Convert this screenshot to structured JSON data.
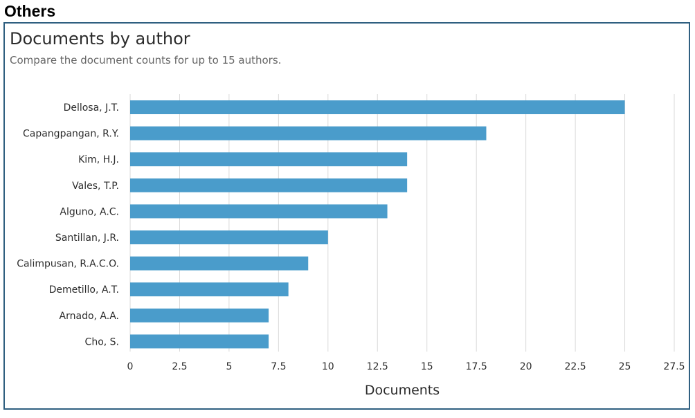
{
  "section": {
    "heading": "Others"
  },
  "panel": {
    "title": "Documents by author",
    "subtitle": "Compare the document counts for up to 15 authors."
  },
  "colors": {
    "bar": "#4a9ccb",
    "grid": "#d9d9d9",
    "border": "#2f5f80",
    "text": "#2b2b2b"
  },
  "chart_data": {
    "type": "bar",
    "orientation": "horizontal",
    "categories": [
      "Dellosa, J.T.",
      "Capangpangan, R.Y.",
      "Kim, H.J.",
      "Vales, T.P.",
      "Alguno, A.C.",
      "Santillan, J.R.",
      "Calimpusan, R.A.C.O.",
      "Demetillo, A.T.",
      "Arnado, A.A.",
      "Cho, S."
    ],
    "values": [
      25,
      18,
      14,
      14,
      13,
      10,
      9,
      8,
      7,
      7
    ],
    "xlabel": "Documents",
    "ylabel": "",
    "xlim": [
      0,
      27.5
    ],
    "xticks": [
      "0",
      "2.5",
      "5",
      "7.5",
      "10",
      "12.5",
      "15",
      "17.5",
      "20",
      "22.5",
      "25",
      "27.5"
    ],
    "grid": true,
    "legend": "none"
  }
}
